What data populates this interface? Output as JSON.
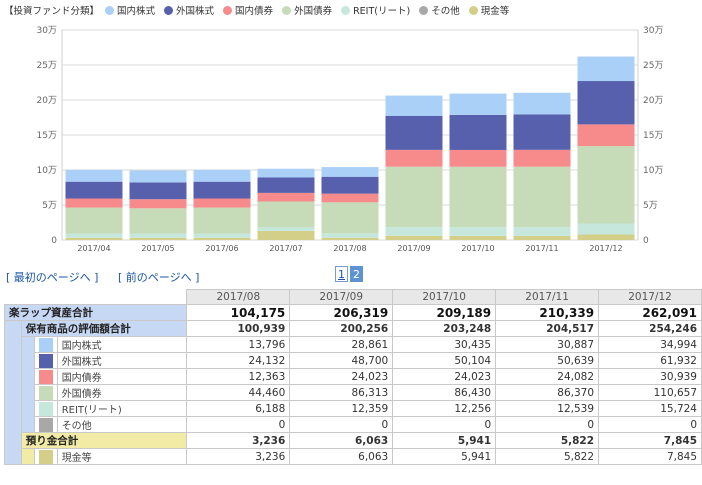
{
  "legend": {
    "title": "【投資ファンド分類】",
    "items": [
      {
        "label": "国内株式",
        "color": "#aad0f8"
      },
      {
        "label": "外国株式",
        "color": "#5660ad"
      },
      {
        "label": "国内債券",
        "color": "#f78a8a"
      },
      {
        "label": "外国債券",
        "color": "#c6dbb8"
      },
      {
        "label": "REIT(リート)",
        "color": "#c6e8dc"
      },
      {
        "label": "その他",
        "color": "#a8a8a8"
      },
      {
        "label": "現金等",
        "color": "#d3cf88"
      }
    ]
  },
  "chart_data": {
    "type": "bar",
    "stacked": true,
    "categories": [
      "2017/04",
      "2017/05",
      "2017/06",
      "2017/07",
      "2017/08",
      "2017/09",
      "2017/10",
      "2017/11",
      "2017/12"
    ],
    "ylim": [
      0,
      300000
    ],
    "ytick_labels": [
      "0",
      "5万",
      "10万",
      "15万",
      "20万",
      "25万",
      "30万"
    ],
    "grid": true,
    "series": [
      {
        "name": "現金等",
        "color": "#d3cf88",
        "values": [
          3200,
          3200,
          3200,
          13000,
          3236,
          6063,
          5941,
          5822,
          7845
        ]
      },
      {
        "name": "その他",
        "color": "#a8a8a8",
        "values": [
          0,
          0,
          0,
          0,
          0,
          0,
          0,
          0,
          0
        ]
      },
      {
        "name": "REIT(リート)",
        "color": "#c6e8dc",
        "values": [
          6100,
          6100,
          6100,
          5000,
          6188,
          12359,
          12256,
          12539,
          15724
        ]
      },
      {
        "name": "外国債券",
        "color": "#c6dbb8",
        "values": [
          37000,
          36000,
          37000,
          37000,
          44460,
          86313,
          86430,
          86370,
          110657
        ]
      },
      {
        "name": "国内債券",
        "color": "#f78a8a",
        "values": [
          13000,
          13000,
          13000,
          12300,
          12363,
          24023,
          24023,
          24082,
          30939
        ]
      },
      {
        "name": "外国株式",
        "color": "#5660ad",
        "values": [
          24000,
          24000,
          24000,
          22000,
          24132,
          48700,
          50104,
          50639,
          61932
        ]
      },
      {
        "name": "国内株式",
        "color": "#aad0f8",
        "values": [
          17000,
          17000,
          17000,
          12500,
          13796,
          28861,
          30435,
          30887,
          34994
        ]
      }
    ]
  },
  "nav": {
    "first_open": "[",
    "first_label": "最初のページへ",
    "first_close": "]",
    "prev_open": "[",
    "prev_label": "前のページへ",
    "prev_close": "]"
  },
  "pager": {
    "page1": "1",
    "page2": "2"
  },
  "table": {
    "columns": [
      "2017/08",
      "2017/09",
      "2017/10",
      "2017/11",
      "2017/12"
    ],
    "total": {
      "label": "楽ラップ資産合計",
      "values": [
        "104,175",
        "206,319",
        "209,189",
        "210,339",
        "262,091"
      ]
    },
    "holdings": {
      "label": "保有商品の評価額合計",
      "values": [
        "100,939",
        "200,256",
        "203,248",
        "204,517",
        "254,246"
      ],
      "rows": [
        {
          "label": "国内株式",
          "color": "#aad0f8",
          "values": [
            "13,796",
            "28,861",
            "30,435",
            "30,887",
            "34,994"
          ]
        },
        {
          "label": "外国株式",
          "color": "#5660ad",
          "values": [
            "24,132",
            "48,700",
            "50,104",
            "50,639",
            "61,932"
          ]
        },
        {
          "label": "国内債券",
          "color": "#f78a8a",
          "values": [
            "12,363",
            "24,023",
            "24,023",
            "24,082",
            "30,939"
          ]
        },
        {
          "label": "外国債券",
          "color": "#c6dbb8",
          "values": [
            "44,460",
            "86,313",
            "86,430",
            "86,370",
            "110,657"
          ]
        },
        {
          "label": "REIT(リート)",
          "color": "#c6e8dc",
          "values": [
            "6,188",
            "12,359",
            "12,256",
            "12,539",
            "15,724"
          ]
        },
        {
          "label": "その他",
          "color": "#a8a8a8",
          "values": [
            "0",
            "0",
            "0",
            "0",
            "0"
          ]
        }
      ]
    },
    "deposit": {
      "label": "預り金合計",
      "values": [
        "3,236",
        "6,063",
        "5,941",
        "5,822",
        "7,845"
      ],
      "rows": [
        {
          "label": "現金等",
          "color": "#d3cf88",
          "values": [
            "3,236",
            "6,063",
            "5,941",
            "5,822",
            "7,845"
          ]
        }
      ]
    }
  }
}
